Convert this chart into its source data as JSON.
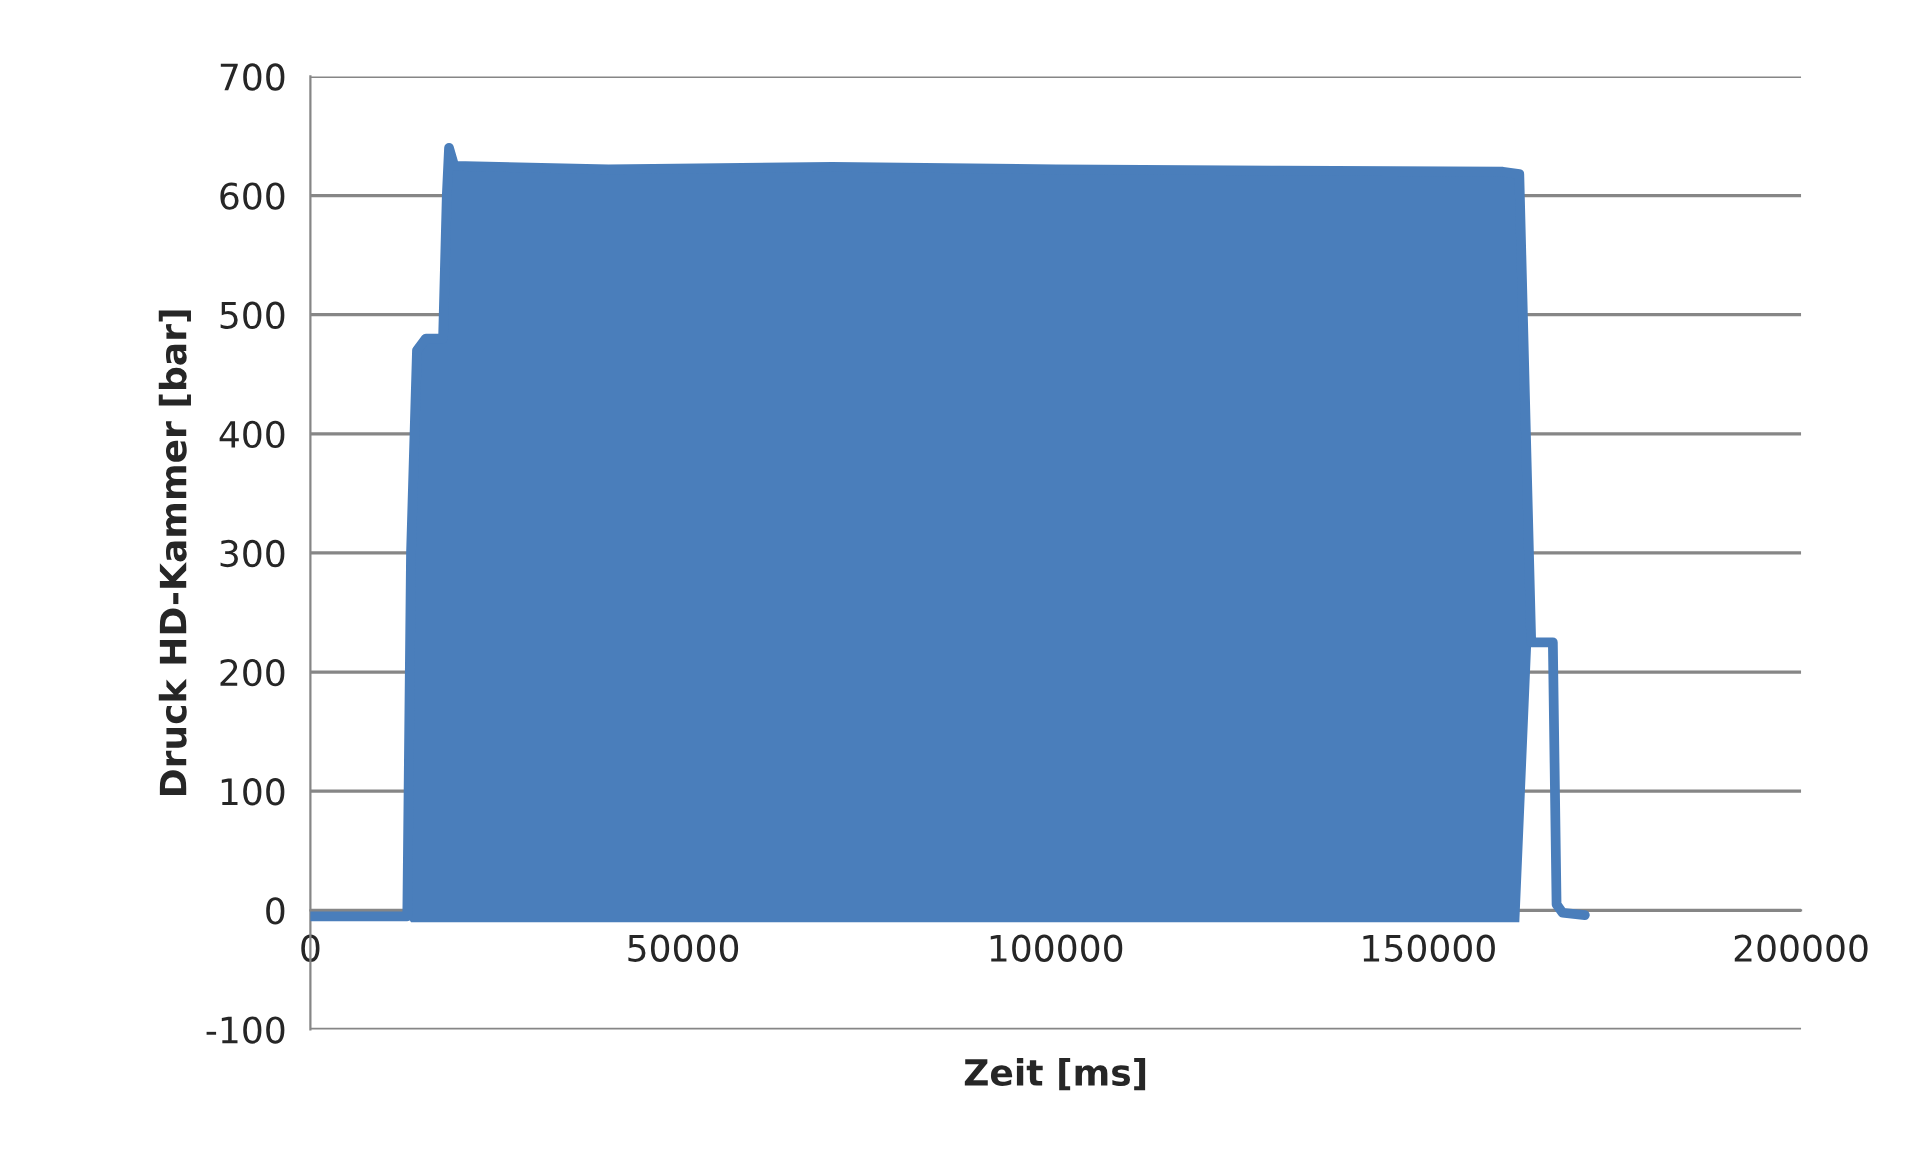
{
  "chart_data": {
    "type": "line",
    "xlabel": "Zeit [ms]",
    "ylabel": "Druck HD-Kammer [bar]",
    "xlim": [
      0,
      200000
    ],
    "xticks": [
      0,
      50000,
      100000,
      150000,
      200000
    ],
    "ylim": [
      -100,
      700
    ],
    "yticks": [
      -100,
      0,
      100,
      200,
      300,
      400,
      500,
      600,
      700
    ],
    "grid": "y",
    "line_style": "solid",
    "series": [
      {
        "color": "#4a7ebb",
        "x": [
          0,
          13000,
          13500,
          14300,
          15500,
          17800,
          18300,
          18600,
          19300,
          40000,
          70000,
          100000,
          130000,
          160000,
          162200,
          163800,
          166700,
          167200,
          168000,
          171000
        ],
        "values": [
          -5,
          -5,
          300,
          470,
          480,
          480,
          600,
          640,
          625,
          622,
          624,
          622,
          621,
          620,
          618,
          225,
          225,
          5,
          -2,
          -4
        ],
        "upper": [
          -5,
          -5,
          300,
          470,
          480,
          480,
          600,
          640,
          625,
          622,
          624,
          622,
          621,
          620,
          618,
          225,
          225,
          5,
          -2,
          -4
        ],
        "lower": [
          -5,
          -5,
          -10,
          -10,
          -10,
          -10,
          -10,
          -10,
          -10,
          -10,
          -10,
          -10,
          -10,
          -10,
          -10,
          225,
          225,
          5,
          -2,
          -4
        ]
      }
    ]
  }
}
